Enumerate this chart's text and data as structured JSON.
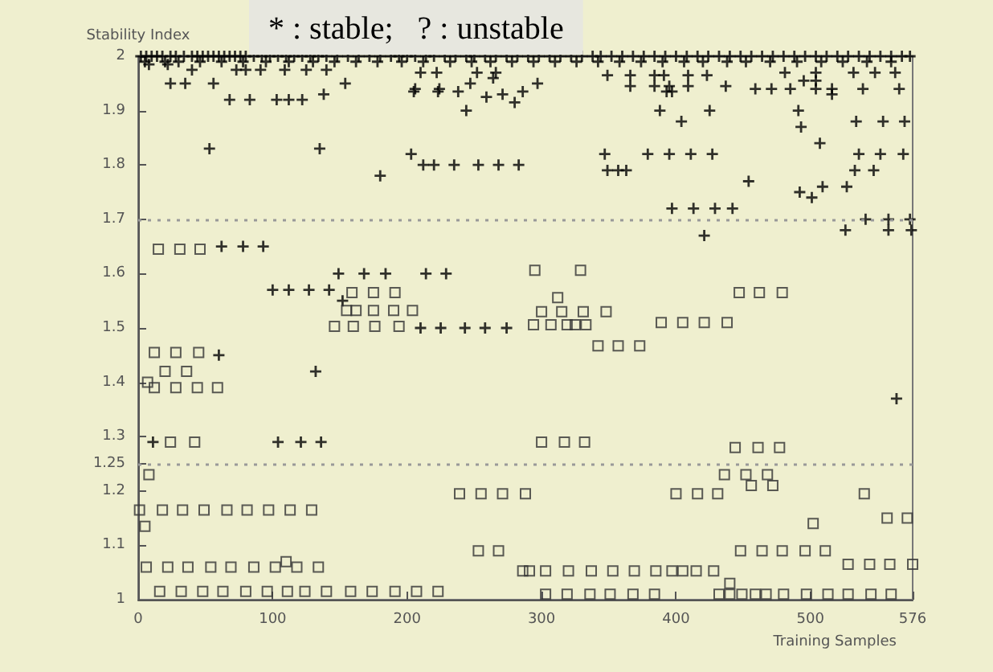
{
  "chart_data": {
    "type": "scatter",
    "title": "* : stable;   ? : unstable",
    "xlabel": "Training Samples",
    "ylabel": "Stability Index",
    "xlim": [
      0,
      576
    ],
    "xticks": [
      0,
      100,
      200,
      300,
      400,
      500,
      576
    ],
    "ylim": [
      1,
      2
    ],
    "yticks": [
      1,
      1.1,
      1.2,
      1.25,
      1.3,
      1.4,
      1.5,
      1.6,
      1.7,
      1.8,
      1.9,
      2
    ],
    "grid": false,
    "ref_lines": [
      {
        "axis": "y",
        "value": 1.7,
        "line_style": "dotted",
        "color": "#999999"
      },
      {
        "axis": "y",
        "value": 1.25,
        "line_style": "dotted",
        "color": "#999999"
      }
    ],
    "series": [
      {
        "color": "#000000",
        "marker": "cross",
        "x": [
          2,
          6,
          10,
          14,
          18,
          24,
          28,
          34,
          40,
          44,
          48,
          52,
          56,
          60,
          64,
          68,
          72,
          76,
          80,
          86,
          92,
          98,
          104,
          110,
          116,
          122,
          128,
          134,
          140,
          148,
          156,
          164,
          172,
          180,
          188,
          194,
          200,
          206,
          214,
          220,
          228,
          236,
          244,
          250,
          258,
          266,
          274,
          282,
          290,
          298,
          306,
          314,
          322,
          330,
          338,
          344,
          352,
          360,
          368,
          376,
          384,
          392,
          400,
          408,
          416,
          424,
          432,
          440,
          448,
          456,
          464,
          472,
          480,
          488,
          496,
          504,
          512,
          520,
          528,
          536,
          544,
          552,
          560,
          568,
          574,
          5,
          20,
          30,
          46,
          62,
          78,
          95,
          112,
          130,
          146,
          162,
          178,
          196,
          212,
          232,
          248,
          262,
          278,
          294,
          310,
          326,
          342,
          358,
          374,
          390,
          406,
          420,
          438,
          452,
          470,
          490,
          508,
          524,
          542,
          560,
          8,
          22,
          40,
          73,
          80,
          91,
          109,
          125,
          140,
          24,
          35,
          56,
          68,
          83,
          103,
          112,
          122,
          138,
          154,
          206,
          224,
          205,
          223,
          238,
          244,
          247,
          259,
          264,
          210,
          222,
          252,
          266,
          271,
          280,
          286,
          297,
          349,
          366,
          384,
          391,
          409,
          423,
          366,
          384,
          395,
          409,
          437,
          393,
          397,
          459,
          471,
          485,
          504,
          516,
          539,
          566,
          495,
          504,
          516,
          481,
          504,
          532,
          548,
          563,
          53,
          135,
          180,
          203,
          212,
          220,
          235,
          253,
          268,
          283,
          347,
          379,
          395,
          411,
          427,
          349,
          357,
          363,
          454,
          397,
          413,
          429,
          442,
          421,
          526,
          558,
          575,
          541,
          558,
          574,
          492,
          501,
          509,
          527,
          533,
          547,
          536,
          552,
          569,
          507,
          404,
          534,
          554,
          570,
          493,
          491,
          388,
          425,
          62,
          78,
          93,
          100,
          112,
          127,
          142,
          149,
          168,
          184,
          214,
          229,
          152,
          210,
          225,
          243,
          258,
          274,
          60,
          132,
          11,
          104,
          121,
          136,
          564
        ],
        "values": [
          2,
          2,
          2,
          2,
          2,
          2,
          2,
          2,
          2,
          2,
          2,
          2,
          2,
          2,
          2,
          2,
          2,
          2,
          2,
          2,
          2,
          2,
          2,
          2,
          2,
          2,
          2,
          2,
          2,
          2,
          2,
          2,
          2,
          2,
          2,
          2,
          2,
          2,
          2,
          2,
          2,
          2,
          2,
          2,
          2,
          2,
          2,
          2,
          2,
          2,
          2,
          2,
          2,
          2,
          2,
          2,
          2,
          2,
          2,
          2,
          2,
          2,
          2,
          2,
          2,
          2,
          2,
          2,
          2,
          2,
          2,
          2,
          2,
          2,
          2,
          2,
          2,
          2,
          2,
          2,
          2,
          2,
          2,
          2,
          2,
          1.99,
          1.99,
          1.99,
          1.99,
          1.99,
          1.99,
          1.99,
          1.99,
          1.99,
          1.99,
          1.99,
          1.99,
          1.99,
          1.99,
          1.99,
          1.99,
          1.99,
          1.99,
          1.99,
          1.99,
          1.99,
          1.99,
          1.99,
          1.99,
          1.99,
          1.99,
          1.99,
          1.99,
          1.99,
          1.99,
          1.99,
          1.99,
          1.99,
          1.99,
          1.99,
          1.985,
          1.985,
          1.975,
          1.975,
          1.975,
          1.975,
          1.975,
          1.975,
          1.975,
          1.95,
          1.95,
          1.95,
          1.92,
          1.92,
          1.92,
          1.92,
          1.92,
          1.93,
          1.95,
          1.94,
          1.94,
          1.935,
          1.935,
          1.935,
          1.9,
          1.95,
          1.925,
          1.96,
          1.97,
          1.97,
          1.97,
          1.97,
          1.93,
          1.915,
          1.935,
          1.95,
          1.965,
          1.965,
          1.965,
          1.965,
          1.965,
          1.965,
          1.945,
          1.945,
          1.945,
          1.945,
          1.945,
          1.935,
          1.935,
          1.94,
          1.94,
          1.94,
          1.94,
          1.94,
          1.94,
          1.94,
          1.955,
          1.955,
          1.93,
          1.97,
          1.97,
          1.97,
          1.97,
          1.97,
          1.83,
          1.83,
          1.78,
          1.82,
          1.8,
          1.8,
          1.8,
          1.8,
          1.8,
          1.8,
          1.82,
          1.82,
          1.82,
          1.82,
          1.82,
          1.79,
          1.79,
          1.79,
          1.77,
          1.72,
          1.72,
          1.72,
          1.72,
          1.67,
          1.68,
          1.68,
          1.68,
          1.7,
          1.7,
          1.7,
          1.75,
          1.74,
          1.76,
          1.76,
          1.79,
          1.79,
          1.82,
          1.82,
          1.82,
          1.84,
          1.88,
          1.88,
          1.88,
          1.88,
          1.87,
          1.9,
          1.9,
          1.9,
          1.65,
          1.65,
          1.65,
          1.57,
          1.57,
          1.57,
          1.57,
          1.6,
          1.6,
          1.6,
          1.6,
          1.6,
          1.55,
          1.5,
          1.5,
          1.5,
          1.5,
          1.5,
          1.45,
          1.42,
          1.29,
          1.29,
          1.29,
          1.29,
          1.37
        ]
      },
      {
        "color": "#333333",
        "marker": "square",
        "x": [
          16,
          32,
          48,
          63,
          80,
          96,
          111,
          124,
          140,
          158,
          174,
          191,
          207,
          223,
          6,
          22,
          37,
          54,
          69,
          86,
          102,
          110,
          118,
          134,
          1,
          18,
          33,
          49,
          66,
          81,
          97,
          113,
          129,
          5,
          8,
          24,
          42,
          12,
          28,
          44,
          59,
          7,
          20,
          36,
          12,
          28,
          45,
          239,
          255,
          271,
          288,
          400,
          416,
          431,
          253,
          268,
          300,
          317,
          332,
          444,
          461,
          477,
          436,
          452,
          468,
          456,
          472,
          540,
          502,
          557,
          572,
          448,
          464,
          479,
          496,
          511,
          528,
          544,
          559,
          576,
          286,
          291,
          303,
          320,
          337,
          353,
          369,
          385,
          397,
          405,
          415,
          428,
          440,
          303,
          319,
          336,
          351,
          368,
          384,
          432,
          440,
          449,
          459,
          467,
          480,
          497,
          513,
          528,
          545,
          560,
          342,
          357,
          373,
          294,
          307,
          319,
          325,
          333,
          389,
          405,
          421,
          438,
          300,
          315,
          331,
          348,
          312,
          295,
          329,
          447,
          462,
          479,
          15,
          31,
          46,
          159,
          175,
          191,
          155,
          162,
          175,
          190,
          204,
          146,
          160,
          176,
          194
        ],
        "values": [
          1.015,
          1.015,
          1.015,
          1.015,
          1.015,
          1.015,
          1.015,
          1.015,
          1.015,
          1.015,
          1.015,
          1.015,
          1.015,
          1.015,
          1.06,
          1.06,
          1.06,
          1.06,
          1.06,
          1.06,
          1.06,
          1.07,
          1.06,
          1.06,
          1.165,
          1.165,
          1.165,
          1.165,
          1.165,
          1.165,
          1.165,
          1.165,
          1.165,
          1.135,
          1.23,
          1.29,
          1.29,
          1.39,
          1.39,
          1.39,
          1.39,
          1.4,
          1.42,
          1.42,
          1.455,
          1.455,
          1.455,
          1.195,
          1.195,
          1.195,
          1.195,
          1.195,
          1.195,
          1.195,
          1.09,
          1.09,
          1.29,
          1.29,
          1.29,
          1.28,
          1.28,
          1.28,
          1.23,
          1.23,
          1.23,
          1.21,
          1.21,
          1.195,
          1.14,
          1.15,
          1.15,
          1.09,
          1.09,
          1.09,
          1.09,
          1.09,
          1.065,
          1.065,
          1.065,
          1.065,
          1.053,
          1.053,
          1.053,
          1.053,
          1.053,
          1.053,
          1.053,
          1.053,
          1.053,
          1.053,
          1.053,
          1.053,
          1.03,
          1.01,
          1.01,
          1.01,
          1.01,
          1.01,
          1.01,
          1.01,
          1.01,
          1.01,
          1.01,
          1.01,
          1.01,
          1.01,
          1.01,
          1.01,
          1.01,
          1.01,
          1.467,
          1.467,
          1.467,
          1.506,
          1.506,
          1.506,
          1.506,
          1.506,
          1.51,
          1.51,
          1.51,
          1.51,
          1.53,
          1.53,
          1.53,
          1.53,
          1.556,
          1.606,
          1.606,
          1.565,
          1.565,
          1.565,
          1.645,
          1.645,
          1.645,
          1.565,
          1.565,
          1.565,
          1.532,
          1.532,
          1.532,
          1.532,
          1.532,
          1.503,
          1.503,
          1.503,
          1.503
        ]
      }
    ]
  }
}
